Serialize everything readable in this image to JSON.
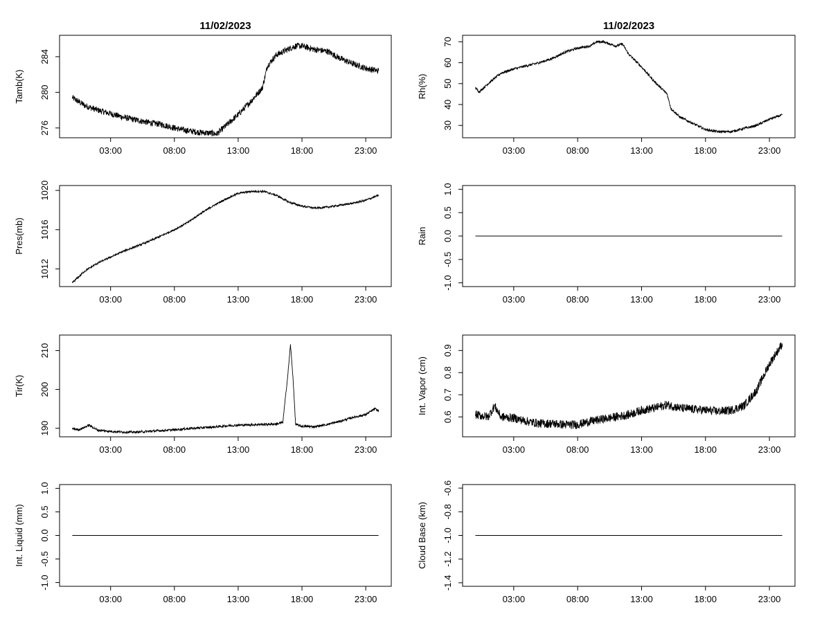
{
  "figure": {
    "date": "11/02/2023"
  },
  "chart_data": [
    {
      "id": "tamb",
      "type": "line",
      "title": "11/02/2023",
      "ylabel": "Tamb(K)",
      "xlabel": "",
      "x_ticks": [
        "03:00",
        "08:00",
        "13:00",
        "18:00",
        "23:00"
      ],
      "y_ticks": [
        "276",
        "280",
        "284"
      ],
      "xlim_hours": [
        -1.0,
        25.0
      ],
      "ylim": [
        274.9,
        286.4
      ],
      "series": [
        {
          "noise": 0.35,
          "points": [
            [
              0,
              279.4
            ],
            [
              1,
              278.5
            ],
            [
              2,
              278.0
            ],
            [
              3,
              277.6
            ],
            [
              4,
              277.2
            ],
            [
              5,
              276.9
            ],
            [
              6,
              276.6
            ],
            [
              7,
              276.4
            ],
            [
              8,
              276.0
            ],
            [
              9,
              275.7
            ],
            [
              10,
              275.5
            ],
            [
              11,
              275.4
            ],
            [
              11.3,
              275.3
            ],
            [
              12,
              276.2
            ],
            [
              13,
              277.5
            ],
            [
              14,
              279.0
            ],
            [
              14.9,
              280.5
            ],
            [
              15.3,
              283.0
            ],
            [
              16,
              284.2
            ],
            [
              17,
              284.9
            ],
            [
              17.5,
              285.2
            ],
            [
              18,
              285.2
            ],
            [
              19,
              284.8
            ],
            [
              20,
              284.6
            ],
            [
              21,
              283.8
            ],
            [
              22,
              283.2
            ],
            [
              23,
              282.7
            ],
            [
              24,
              282.4
            ]
          ]
        }
      ]
    },
    {
      "id": "rh",
      "type": "line",
      "title": "11/02/2023",
      "ylabel": "Rh(%)",
      "xlabel": "",
      "x_ticks": [
        "03:00",
        "08:00",
        "13:00",
        "18:00",
        "23:00"
      ],
      "y_ticks": [
        "30",
        "40",
        "50",
        "60",
        "70"
      ],
      "xlim_hours": [
        -1.0,
        25.0
      ],
      "ylim": [
        24.1,
        73.1
      ],
      "series": [
        {
          "noise": 0.6,
          "points": [
            [
              0,
              48
            ],
            [
              0.3,
              46
            ],
            [
              1,
              50
            ],
            [
              2,
              55
            ],
            [
              3,
              57
            ],
            [
              4,
              58.5
            ],
            [
              5,
              60
            ],
            [
              6,
              62
            ],
            [
              7,
              65
            ],
            [
              8,
              67
            ],
            [
              9,
              68
            ],
            [
              9.5,
              70
            ],
            [
              10,
              70
            ],
            [
              11,
              68
            ],
            [
              11.5,
              69
            ],
            [
              12,
              64
            ],
            [
              13,
              58
            ],
            [
              14,
              51
            ],
            [
              15,
              45
            ],
            [
              15.3,
              38
            ],
            [
              16,
              34
            ],
            [
              17,
              31
            ],
            [
              18,
              28
            ],
            [
              19,
              27
            ],
            [
              20,
              27
            ],
            [
              21,
              28.5
            ],
            [
              22,
              30
            ],
            [
              23,
              33
            ],
            [
              24,
              35
            ]
          ]
        }
      ]
    },
    {
      "id": "pres",
      "type": "line",
      "title": "",
      "ylabel": "Pres(mb)",
      "xlabel": "",
      "x_ticks": [
        "03:00",
        "08:00",
        "13:00",
        "18:00",
        "23:00"
      ],
      "y_ticks": [
        "1012",
        "1016",
        "1020"
      ],
      "xlim_hours": [
        -1.0,
        25.0
      ],
      "ylim": [
        1010.2,
        1020.5
      ],
      "series": [
        {
          "noise": 0.1,
          "points": [
            [
              0,
              1010.6
            ],
            [
              1,
              1011.8
            ],
            [
              2,
              1012.6
            ],
            [
              3,
              1013.2
            ],
            [
              4,
              1013.8
            ],
            [
              5,
              1014.3
            ],
            [
              6,
              1014.8
            ],
            [
              7,
              1015.4
            ],
            [
              8,
              1016.0
            ],
            [
              9,
              1016.7
            ],
            [
              10,
              1017.6
            ],
            [
              11,
              1018.4
            ],
            [
              12,
              1019.1
            ],
            [
              13,
              1019.7
            ],
            [
              14,
              1019.9
            ],
            [
              15,
              1019.9
            ],
            [
              16,
              1019.5
            ],
            [
              17,
              1018.8
            ],
            [
              18,
              1018.4
            ],
            [
              19,
              1018.2
            ],
            [
              20,
              1018.3
            ],
            [
              21,
              1018.5
            ],
            [
              22,
              1018.7
            ],
            [
              23,
              1019.0
            ],
            [
              24,
              1019.5
            ]
          ]
        }
      ]
    },
    {
      "id": "rain",
      "type": "line",
      "title": "",
      "ylabel": "Rain",
      "xlabel": "",
      "x_ticks": [
        "03:00",
        "08:00",
        "13:00",
        "18:00",
        "23:00"
      ],
      "y_ticks": [
        "-1.0",
        "-0.5",
        "0.0",
        "0.5",
        "1.0"
      ],
      "tick_positions": [
        -1.0,
        -0.5,
        0.0,
        0.5,
        1.0
      ],
      "xlim_hours": [
        -1.0,
        25.0
      ],
      "ylim": [
        -1.08,
        1.08
      ],
      "series": [
        {
          "noise": 0,
          "points": [
            [
              0,
              0
            ],
            [
              24,
              0
            ]
          ]
        }
      ]
    },
    {
      "id": "tir",
      "type": "line",
      "title": "",
      "ylabel": "Tir(K)",
      "xlabel": "",
      "x_ticks": [
        "03:00",
        "08:00",
        "13:00",
        "18:00",
        "23:00"
      ],
      "y_ticks": [
        "190",
        "200",
        "210"
      ],
      "xlim_hours": [
        -1.0,
        25.0
      ],
      "ylim": [
        187.8,
        214.0
      ],
      "series": [
        {
          "noise": 0.3,
          "points": [
            [
              0,
              189.9
            ],
            [
              0.5,
              189.6
            ],
            [
              1,
              190.3
            ],
            [
              1.3,
              190.8
            ],
            [
              2,
              189.5
            ],
            [
              3,
              189.2
            ],
            [
              4,
              189.0
            ],
            [
              5,
              189.0
            ],
            [
              6,
              189.2
            ],
            [
              7,
              189.4
            ],
            [
              8,
              189.6
            ],
            [
              9,
              189.9
            ],
            [
              10,
              190.1
            ],
            [
              11,
              190.3
            ],
            [
              12,
              190.6
            ],
            [
              13,
              190.8
            ],
            [
              14,
              190.9
            ],
            [
              15,
              191.0
            ],
            [
              16,
              191.1
            ],
            [
              16.5,
              191.5
            ],
            [
              16.9,
              204.0
            ],
            [
              17.1,
              211.5
            ],
            [
              17.3,
              203.0
            ],
            [
              17.5,
              191.0
            ],
            [
              18,
              190.5
            ],
            [
              19,
              190.4
            ],
            [
              20,
              191.0
            ],
            [
              21,
              191.8
            ],
            [
              22,
              192.8
            ],
            [
              23,
              193.5
            ],
            [
              23.7,
              195.0
            ],
            [
              24,
              194.5
            ]
          ]
        }
      ]
    },
    {
      "id": "vapor",
      "type": "line",
      "title": "",
      "ylabel": "Int. Vapor (cm)",
      "xlabel": "",
      "x_ticks": [
        "03:00",
        "08:00",
        "13:00",
        "18:00",
        "23:00"
      ],
      "y_ticks": [
        "0.6",
        "0.7",
        "0.8",
        "0.9"
      ],
      "xlim_hours": [
        -1.0,
        25.0
      ],
      "ylim": [
        0.51,
        0.97
      ],
      "series": [
        {
          "noise": 0.02,
          "points": [
            [
              0,
              0.61
            ],
            [
              1,
              0.6
            ],
            [
              1.5,
              0.65
            ],
            [
              2,
              0.6
            ],
            [
              3,
              0.595
            ],
            [
              4,
              0.58
            ],
            [
              5,
              0.57
            ],
            [
              6,
              0.57
            ],
            [
              7,
              0.565
            ],
            [
              8,
              0.565
            ],
            [
              9,
              0.58
            ],
            [
              10,
              0.59
            ],
            [
              11,
              0.6
            ],
            [
              12,
              0.61
            ],
            [
              13,
              0.63
            ],
            [
              14,
              0.64
            ],
            [
              15,
              0.655
            ],
            [
              16,
              0.64
            ],
            [
              17,
              0.635
            ],
            [
              18,
              0.63
            ],
            [
              19,
              0.625
            ],
            [
              20,
              0.63
            ],
            [
              21,
              0.65
            ],
            [
              22,
              0.72
            ],
            [
              23,
              0.84
            ],
            [
              24,
              0.93
            ]
          ]
        }
      ]
    },
    {
      "id": "liquid",
      "type": "line",
      "title": "",
      "ylabel": "Int. Liquid (mm)",
      "xlabel": "",
      "x_ticks": [
        "03:00",
        "08:00",
        "13:00",
        "18:00",
        "23:00"
      ],
      "y_ticks": [
        "-1.0",
        "-0.5",
        "0.0",
        "0.5",
        "1.0"
      ],
      "tick_positions": [
        -1.0,
        -0.5,
        0.0,
        0.5,
        1.0
      ],
      "xlim_hours": [
        -1.0,
        25.0
      ],
      "ylim": [
        -1.08,
        1.08
      ],
      "series": [
        {
          "noise": 0,
          "points": [
            [
              0,
              0
            ],
            [
              24,
              0
            ]
          ]
        }
      ]
    },
    {
      "id": "cloudbase",
      "type": "line",
      "title": "",
      "ylabel": "Cloud Base (km)",
      "xlabel": "",
      "x_ticks": [
        "03:00",
        "08:00",
        "13:00",
        "18:00",
        "23:00"
      ],
      "y_ticks": [
        "-1.4",
        "-1.2",
        "-1.0",
        "-0.8",
        "-0.6"
      ],
      "tick_positions": [
        -1.4,
        -1.2,
        -1.0,
        -0.8,
        -0.6
      ],
      "xlim_hours": [
        -1.0,
        25.0
      ],
      "ylim": [
        -1.43,
        -0.57
      ],
      "series": [
        {
          "noise": 0,
          "points": [
            [
              0,
              -1.0
            ],
            [
              24,
              -1.0
            ]
          ]
        }
      ]
    }
  ]
}
